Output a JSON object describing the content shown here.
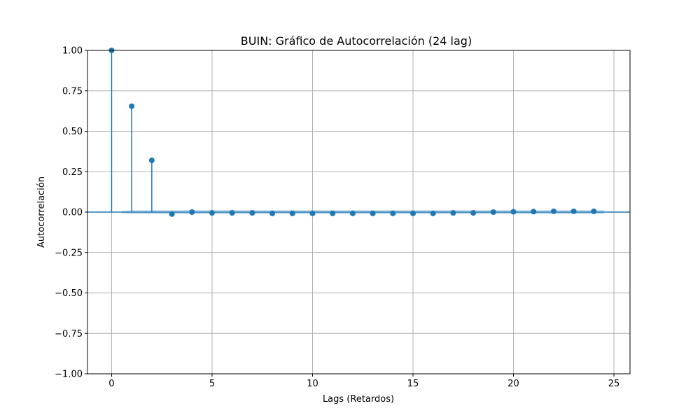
{
  "chart_data": {
    "type": "stem",
    "title": "BUIN: Gráfico de Autocorrelación (24 lag)",
    "xlabel": "Lags (Retardos)",
    "ylabel": "Autocorrelación",
    "xlim": [
      -1.2,
      25.8
    ],
    "ylim": [
      -1.0,
      1.0
    ],
    "x_ticks": [
      0,
      5,
      10,
      15,
      20,
      25
    ],
    "x_tick_labels": [
      "0",
      "5",
      "10",
      "15",
      "20",
      "25"
    ],
    "y_ticks": [
      1.0,
      0.75,
      0.5,
      0.25,
      0.0,
      -0.25,
      -0.5,
      -0.75,
      -1.0
    ],
    "y_tick_labels": [
      "1.00",
      "0.75",
      "0.50",
      "0.25",
      "0.00",
      "−0.25",
      "−0.50",
      "−0.75",
      "−1.00"
    ],
    "grid": true,
    "lags": [
      0,
      1,
      2,
      3,
      4,
      5,
      6,
      7,
      8,
      9,
      10,
      11,
      12,
      13,
      14,
      15,
      16,
      17,
      18,
      19,
      20,
      21,
      22,
      23,
      24
    ],
    "values": [
      1.0,
      0.655,
      0.32,
      -0.012,
      0.0,
      -0.005,
      -0.005,
      -0.005,
      -0.008,
      -0.008,
      -0.008,
      -0.008,
      -0.008,
      -0.008,
      -0.008,
      -0.008,
      -0.008,
      -0.005,
      -0.005,
      0.0,
      0.002,
      0.003,
      0.005,
      0.005,
      0.005
    ],
    "confidence_band": [
      0.008,
      0.012,
      0.013,
      0.013,
      0.013,
      0.013,
      0.013,
      0.013,
      0.013,
      0.013,
      0.013,
      0.013,
      0.013,
      0.013,
      0.013,
      0.013,
      0.013,
      0.013,
      0.013,
      0.013,
      0.013,
      0.013,
      0.013,
      0.013,
      0.013
    ],
    "colors": {
      "stem": "#1f77b4",
      "baseline": "#1f77b4",
      "band": "#1f77b4",
      "grid": "#b0b0b0",
      "frame": "#000000"
    }
  }
}
